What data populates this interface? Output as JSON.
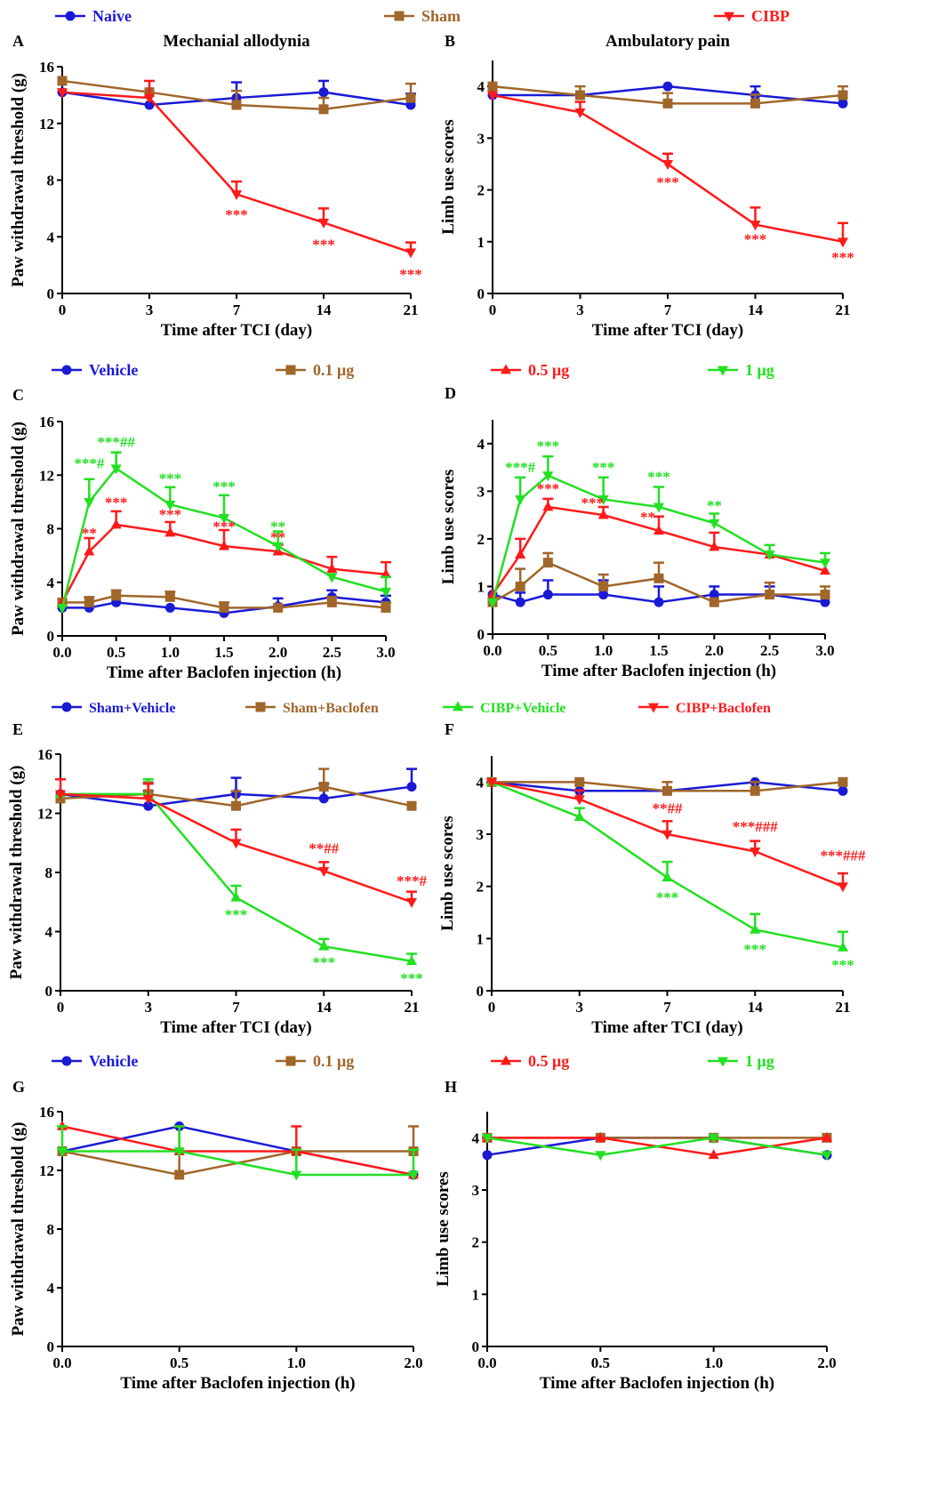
{
  "legends": [
    {
      "items": [
        {
          "name": "Naive",
          "color": "#1a1ad6",
          "marker": "circle"
        },
        {
          "name": "Sham",
          "color": "#a0662a",
          "marker": "square"
        },
        {
          "name": "CIBP",
          "color": "#ff1a1a",
          "marker": "tri-down"
        }
      ]
    },
    {
      "items": [
        {
          "name": "Vehicle",
          "color": "#1a1ad6",
          "marker": "circle"
        },
        {
          "name": "0.1 μg",
          "color": "#a0662a",
          "marker": "square"
        },
        {
          "name": "0.5 μg",
          "color": "#ff1a1a",
          "marker": "tri-up"
        },
        {
          "name": "1 μg",
          "color": "#22e022",
          "marker": "tri-down"
        }
      ]
    },
    {
      "items": [
        {
          "name": "Sham+Vehicle",
          "color": "#1a1ad6",
          "marker": "circle"
        },
        {
          "name": "Sham+Baclofen",
          "color": "#a0662a",
          "marker": "square"
        },
        {
          "name": "CIBP+Vehicle",
          "color": "#22e022",
          "marker": "tri-up"
        },
        {
          "name": "CIBP+Baclofen",
          "color": "#ff1a1a",
          "marker": "tri-down"
        }
      ]
    },
    {
      "items": [
        {
          "name": "Vehicle",
          "color": "#1a1ad6",
          "marker": "circle"
        },
        {
          "name": "0.1 μg",
          "color": "#a0662a",
          "marker": "square"
        },
        {
          "name": "0.5 μg",
          "color": "#ff1a1a",
          "marker": "tri-up"
        },
        {
          "name": "1 μg",
          "color": "#22e022",
          "marker": "tri-down"
        }
      ]
    }
  ],
  "chart_data": [
    {
      "panel": "A",
      "type": "line",
      "title": "Mechanial allodynia",
      "xlabel": "Time after TCI (day)",
      "ylabel": "Paw withdrawal threshold (g)",
      "categories": [
        "0",
        "3",
        "7",
        "14",
        "21"
      ],
      "ylim": [
        0,
        16
      ],
      "yticks": [
        0,
        4,
        8,
        12,
        16
      ],
      "series": [
        {
          "name": "Naive",
          "values": [
            14.2,
            13.3,
            13.8,
            14.2,
            13.3
          ],
          "errors": [
            0,
            0,
            1.1,
            0.8,
            0.8
          ]
        },
        {
          "name": "Sham",
          "values": [
            15.0,
            14.2,
            13.3,
            13.0,
            13.8
          ],
          "errors": [
            0,
            0,
            1.0,
            0.8,
            1.0
          ]
        },
        {
          "name": "CIBP",
          "values": [
            14.2,
            13.8,
            7.0,
            5.0,
            2.9
          ],
          "errors": [
            0,
            1.2,
            0.9,
            1.0,
            0.7
          ]
        }
      ],
      "annotations": [
        {
          "text": "***",
          "x": 2,
          "y": 5.2,
          "color": "#ff1a1a"
        },
        {
          "text": "***",
          "x": 3,
          "y": 3.1,
          "color": "#ff1a1a"
        },
        {
          "text": "***",
          "x": 4,
          "y": 1.0,
          "color": "#ff1a1a"
        }
      ]
    },
    {
      "panel": "B",
      "type": "line",
      "title": "Ambulatory pain",
      "xlabel": "Time after TCI (day)",
      "ylabel": "Limb use scores",
      "categories": [
        "0",
        "3",
        "7",
        "14",
        "21"
      ],
      "ylim": [
        0,
        4.5
      ],
      "yticks": [
        0,
        1,
        2,
        3,
        4
      ],
      "series": [
        {
          "name": "Naive",
          "values": [
            3.83,
            3.83,
            4.0,
            3.83,
            3.67
          ],
          "errors": [
            0,
            0,
            0,
            0.17,
            0
          ]
        },
        {
          "name": "Sham",
          "values": [
            4.0,
            3.83,
            3.67,
            3.67,
            3.83
          ],
          "errors": [
            0,
            0.17,
            0.2,
            0.17,
            0.17
          ]
        },
        {
          "name": "CIBP",
          "values": [
            3.83,
            3.5,
            2.5,
            1.33,
            1.0
          ],
          "errors": [
            0,
            0.2,
            0.2,
            0.33,
            0.36
          ]
        }
      ],
      "annotations": [
        {
          "text": "***",
          "x": 2,
          "y": 2.05,
          "color": "#ff1a1a"
        },
        {
          "text": "***",
          "x": 3,
          "y": 0.95,
          "color": "#ff1a1a"
        },
        {
          "text": "***",
          "x": 4,
          "y": 0.6,
          "color": "#ff1a1a"
        }
      ]
    },
    {
      "panel": "C",
      "type": "line",
      "xlabel": "Time after Baclofen injection  (h)",
      "ylabel": "Paw withdrawal threshold (g)",
      "categories": [
        "0.0",
        "0.5",
        "1.0",
        "1.5",
        "2.0",
        "2.5",
        "3.0"
      ],
      "x": [
        0,
        0.25,
        0.5,
        1.0,
        1.5,
        2.0,
        2.5,
        3.0
      ],
      "xlim": [
        0,
        3
      ],
      "xticks": [
        0,
        0.5,
        1,
        1.5,
        2,
        2.5,
        3
      ],
      "ylim": [
        0,
        16
      ],
      "yticks": [
        0,
        4,
        8,
        12,
        16
      ],
      "series": [
        {
          "name": "Vehicle",
          "values": [
            2.1,
            2.1,
            2.5,
            2.1,
            1.7,
            2.2,
            2.9,
            2.5
          ],
          "errors": [
            0,
            0,
            0,
            0,
            0,
            0.6,
            0.5,
            0.5
          ]
        },
        {
          "name": "0.1 μg",
          "values": [
            2.5,
            2.5,
            3.0,
            2.9,
            2.1,
            2.1,
            2.5,
            2.1
          ],
          "errors": [
            0,
            0.4,
            0.4,
            0.4,
            0.4,
            0,
            0.4,
            0.4
          ]
        },
        {
          "name": "0.5 μg",
          "values": [
            2.5,
            6.3,
            8.3,
            7.7,
            6.7,
            6.3,
            5.0,
            4.6
          ],
          "errors": [
            0,
            1.0,
            1.0,
            0.8,
            1.2,
            0.5,
            0.9,
            0.9
          ]
        },
        {
          "name": "1 μg",
          "values": [
            2.1,
            10.0,
            12.5,
            9.8,
            8.8,
            6.7,
            4.4,
            3.3
          ],
          "errors": [
            0,
            1.7,
            1.2,
            1.3,
            1.7,
            1.1,
            0,
            1.1
          ]
        }
      ],
      "annotations": [
        {
          "text": "***#",
          "x": 0.25,
          "y": 12.5,
          "color": "#22e022"
        },
        {
          "text": "***##",
          "x": 0.5,
          "y": 14.1,
          "color": "#22e022"
        },
        {
          "text": "***",
          "x": 1.0,
          "y": 11.4,
          "color": "#22e022"
        },
        {
          "text": "***",
          "x": 1.5,
          "y": 10.8,
          "color": "#22e022"
        },
        {
          "text": "**",
          "x": 2.0,
          "y": 7.8,
          "color": "#22e022"
        },
        {
          "text": "**",
          "x": 0.25,
          "y": 7.3,
          "color": "#ff1a1a"
        },
        {
          "text": "***",
          "x": 0.5,
          "y": 9.6,
          "color": "#ff1a1a"
        },
        {
          "text": "***",
          "x": 1.0,
          "y": 8.7,
          "color": "#ff1a1a"
        },
        {
          "text": "***",
          "x": 1.5,
          "y": 7.8,
          "color": "#ff1a1a"
        },
        {
          "text": "**",
          "x": 2.0,
          "y": 7.0,
          "color": "#ff1a1a"
        }
      ]
    },
    {
      "panel": "D",
      "type": "line",
      "xlabel": "Time after Baclofen injection  (h)",
      "ylabel": "Limb use scores",
      "categories": [
        "0.0",
        "0.5",
        "1.0",
        "1.5",
        "2.0",
        "2.5",
        "3.0"
      ],
      "x": [
        0,
        0.25,
        0.5,
        1.0,
        1.5,
        2.0,
        2.5,
        3.0
      ],
      "xlim": [
        0,
        3
      ],
      "xticks": [
        0,
        0.5,
        1,
        1.5,
        2,
        2.5,
        3
      ],
      "ylim": [
        0,
        4.5
      ],
      "yticks": [
        0,
        1,
        2,
        3,
        4
      ],
      "series": [
        {
          "name": "Vehicle",
          "values": [
            0.83,
            0.67,
            0.83,
            0.83,
            0.67,
            0.83,
            0.83,
            0.67
          ],
          "errors": [
            0,
            0.2,
            0.3,
            0.3,
            0.33,
            0.17,
            0.17,
            0
          ]
        },
        {
          "name": "0.1 μg",
          "values": [
            0.67,
            1.0,
            1.5,
            1.0,
            1.17,
            0.67,
            0.83,
            0.83
          ],
          "errors": [
            0,
            0.37,
            0.2,
            0.25,
            0.33,
            0,
            0.25,
            0.17
          ]
        },
        {
          "name": "0.5 μg",
          "values": [
            0.83,
            1.67,
            2.67,
            2.5,
            2.17,
            1.83,
            1.67,
            1.33
          ],
          "errors": [
            0,
            0.33,
            0.17,
            0.17,
            0.3,
            0.3,
            0,
            0
          ]
        },
        {
          "name": "1 μg",
          "values": [
            0.67,
            2.83,
            3.33,
            2.83,
            2.67,
            2.33,
            1.67,
            1.5
          ],
          "errors": [
            0,
            0.46,
            0.4,
            0.46,
            0.42,
            0.2,
            0.2,
            0.2
          ]
        }
      ],
      "annotations": [
        {
          "text": "***#",
          "x": 0.25,
          "y": 3.4,
          "color": "#22e022"
        },
        {
          "text": "***",
          "x": 0.5,
          "y": 3.85,
          "color": "#22e022"
        },
        {
          "text": "***",
          "x": 1.0,
          "y": 3.4,
          "color": "#22e022"
        },
        {
          "text": "***",
          "x": 1.5,
          "y": 3.2,
          "color": "#22e022"
        },
        {
          "text": "**",
          "x": 2.0,
          "y": 2.6,
          "color": "#22e022"
        },
        {
          "text": "***",
          "x": 0.5,
          "y": 2.95,
          "color": "#ff1a1a"
        },
        {
          "text": "***",
          "x": 0.9,
          "y": 2.65,
          "color": "#ff1a1a"
        },
        {
          "text": "**",
          "x": 1.4,
          "y": 2.35,
          "color": "#ff1a1a"
        }
      ]
    },
    {
      "panel": "E",
      "type": "line",
      "xlabel": "Time after TCI (day)",
      "ylabel": "Paw withdrawal threshold (g)",
      "categories": [
        "0",
        "3",
        "7",
        "14",
        "21"
      ],
      "ylim": [
        0,
        16
      ],
      "yticks": [
        0,
        4,
        8,
        12,
        16
      ],
      "series": [
        {
          "name": "Sham+Vehicle",
          "values": [
            13.3,
            12.5,
            13.3,
            13.0,
            13.8
          ],
          "errors": [
            0,
            1.0,
            1.1,
            1.0,
            1.2
          ]
        },
        {
          "name": "Sham+Baclofen",
          "values": [
            13.0,
            13.3,
            12.5,
            13.8,
            12.5
          ],
          "errors": [
            0,
            0.8,
            1.0,
            1.2,
            0
          ]
        },
        {
          "name": "CIBP+Vehicle",
          "values": [
            13.3,
            13.3,
            6.3,
            3.0,
            2.0
          ],
          "errors": [
            0,
            1.0,
            0.8,
            0.5,
            0.5
          ]
        },
        {
          "name": "CIBP+Baclofen",
          "values": [
            13.3,
            13.0,
            10.0,
            8.1,
            6.0
          ],
          "errors": [
            1.0,
            1.0,
            0.9,
            0.6,
            0.7
          ]
        }
      ],
      "annotations": [
        {
          "text": "***",
          "x": 2,
          "y": 4.8,
          "color": "#22e022"
        },
        {
          "text": "***",
          "x": 3,
          "y": 1.6,
          "color": "#22e022"
        },
        {
          "text": "***",
          "x": 4,
          "y": 0.5,
          "color": "#22e022"
        },
        {
          "text": "**##",
          "x": 3,
          "y": 9.3,
          "color": "#ff1a1a"
        },
        {
          "text": "***#",
          "x": 4,
          "y": 7.1,
          "color": "#ff1a1a"
        }
      ]
    },
    {
      "panel": "F",
      "type": "line",
      "xlabel": "Time after TCI (day)",
      "ylabel": "Limb use scores",
      "categories": [
        "0",
        "3",
        "7",
        "14",
        "21"
      ],
      "ylim": [
        0,
        4.5
      ],
      "yticks": [
        0,
        1,
        2,
        3,
        4
      ],
      "series": [
        {
          "name": "Sham+Vehicle",
          "values": [
            4.0,
            3.83,
            3.83,
            4.0,
            3.83
          ],
          "errors": [
            0,
            0,
            0,
            0,
            0
          ]
        },
        {
          "name": "Sham+Baclofen",
          "values": [
            4.0,
            4.0,
            3.83,
            3.83,
            4.0
          ],
          "errors": [
            0,
            0,
            0.17,
            0.17,
            0
          ]
        },
        {
          "name": "CIBP+Vehicle",
          "values": [
            4.0,
            3.33,
            2.17,
            1.17,
            0.83
          ],
          "errors": [
            0,
            0.17,
            0.3,
            0.3,
            0.3
          ]
        },
        {
          "name": "CIBP+Baclofen",
          "values": [
            4.0,
            3.67,
            3.0,
            2.67,
            2.0
          ],
          "errors": [
            0,
            0.17,
            0.25,
            0.2,
            0.25
          ]
        }
      ],
      "annotations": [
        {
          "text": "**##",
          "x": 2,
          "y": 3.4,
          "color": "#ff1a1a"
        },
        {
          "text": "***###",
          "x": 3,
          "y": 3.05,
          "color": "#ff1a1a"
        },
        {
          "text": "***###",
          "x": 4,
          "y": 2.5,
          "color": "#ff1a1a"
        },
        {
          "text": "***",
          "x": 2,
          "y": 1.7,
          "color": "#22e022"
        },
        {
          "text": "***",
          "x": 3,
          "y": 0.7,
          "color": "#22e022"
        },
        {
          "text": "***",
          "x": 4,
          "y": 0.4,
          "color": "#22e022"
        }
      ]
    },
    {
      "panel": "G",
      "type": "line",
      "xlabel": "Time after Baclofen injection  (h)",
      "ylabel": "Paw withdrawal threshold (g)",
      "categories": [
        "0.0",
        "0.5",
        "1.0",
        "2.0"
      ],
      "ylim": [
        0,
        16
      ],
      "yticks": [
        0,
        4,
        8,
        12,
        16
      ],
      "series": [
        {
          "name": "Vehicle",
          "values": [
            13.3,
            15.0,
            13.3,
            11.7
          ],
          "errors": [
            0,
            0,
            0,
            0
          ]
        },
        {
          "name": "0.1 μg",
          "values": [
            13.3,
            11.7,
            13.3,
            13.3
          ],
          "errors": [
            0,
            1.6,
            0,
            1.7
          ]
        },
        {
          "name": "0.5 μg",
          "values": [
            15.0,
            13.3,
            13.3,
            11.7
          ],
          "errors": [
            0,
            1.7,
            1.7,
            0
          ]
        },
        {
          "name": "1 μg",
          "values": [
            13.3,
            13.3,
            11.7,
            11.7
          ],
          "errors": [
            1.7,
            1.7,
            1.7,
            1.7
          ]
        }
      ]
    },
    {
      "panel": "H",
      "type": "line",
      "xlabel": "Time after Baclofen injection  (h)",
      "ylabel": "Limb use scores",
      "categories": [
        "0.0",
        "0.5",
        "1.0",
        "2.0"
      ],
      "ylim": [
        0,
        4.5
      ],
      "yticks": [
        0,
        1,
        2,
        3,
        4
      ],
      "series": [
        {
          "name": "Vehicle",
          "values": [
            3.67,
            4.0,
            4.0,
            3.67
          ],
          "errors": [
            0,
            0,
            0,
            0
          ]
        },
        {
          "name": "0.1 μg",
          "values": [
            4.0,
            4.0,
            4.0,
            4.0
          ],
          "errors": [
            0,
            0,
            0,
            0
          ]
        },
        {
          "name": "0.5 μg",
          "values": [
            4.0,
            4.0,
            3.67,
            4.0
          ],
          "errors": [
            0,
            0,
            0,
            0
          ]
        },
        {
          "name": "1 μg",
          "values": [
            4.0,
            3.67,
            4.0,
            3.67
          ],
          "errors": [
            0,
            0,
            0,
            0
          ]
        }
      ]
    }
  ]
}
